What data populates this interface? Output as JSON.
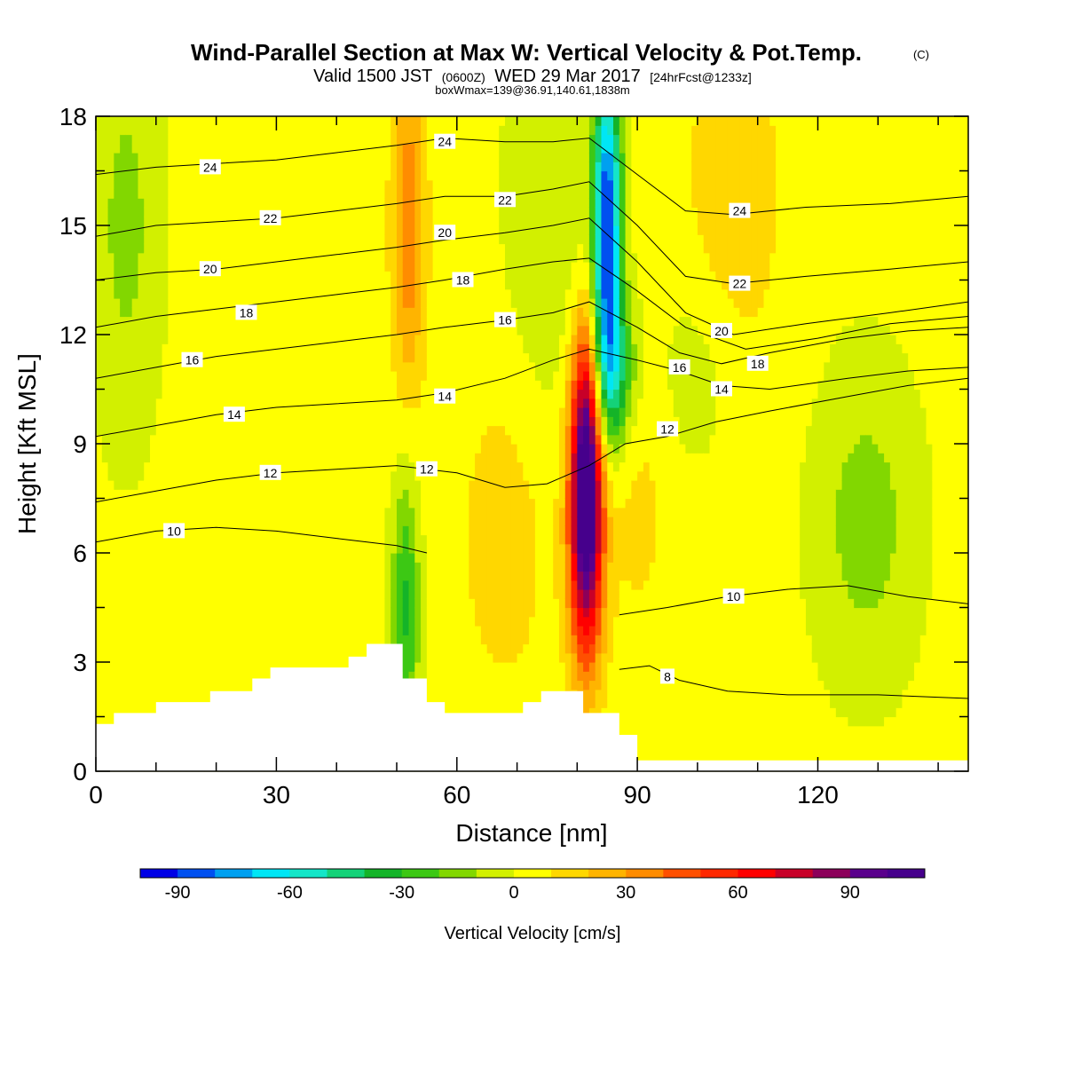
{
  "title": {
    "main": "Wind-Parallel Section at Max W: Vertical Velocity & Pot.Temp.",
    "copyright": "(C)",
    "valid_prefix": "Valid 1500 JST",
    "valid_zulu": "(0600Z)",
    "valid_date": "WED 29 Mar 2017",
    "forecast": "[24hrFcst@1233z]",
    "box_info": "boxWmax=139@36.91,140.61,1838m"
  },
  "chart_data": {
    "type": "heatmap",
    "xlabel": "Distance [nm]",
    "ylabel": "Height [Kft MSL]",
    "xlim": [
      0,
      145
    ],
    "ylim": [
      0,
      18
    ],
    "x_ticks": [
      0,
      30,
      60,
      90,
      120
    ],
    "x_tick_labels": [
      "0",
      "30",
      "60",
      "90",
      "120"
    ],
    "y_ticks": [
      0,
      3,
      6,
      9,
      12,
      15,
      18
    ],
    "y_tick_labels": [
      "0",
      "3",
      "6",
      "9",
      "12",
      "15",
      "18"
    ],
    "colorbar": {
      "title": "Vertical Velocity [cm/s]",
      "bounds": [
        -100,
        110
      ],
      "step": 10,
      "tick_values": [
        -90,
        -60,
        -30,
        0,
        30,
        60,
        90
      ],
      "tick_labels": [
        "-90",
        "-60",
        "-30",
        "0",
        "30",
        "60",
        "90"
      ],
      "colors": [
        "#0000e6",
        "#0050f0",
        "#00a0f0",
        "#00e6f5",
        "#14e6c8",
        "#14d278",
        "#14b428",
        "#3cc814",
        "#82d700",
        "#d2f000",
        "#ffff00",
        "#ffd700",
        "#ffb400",
        "#ff8c00",
        "#ff5000",
        "#ff2800",
        "#ff0000",
        "#c80028",
        "#8c005a",
        "#5a008c",
        "#46008c"
      ]
    },
    "terrain_profile": [
      [
        0,
        1.3
      ],
      [
        3,
        1.3
      ],
      [
        3,
        1.6
      ],
      [
        10,
        1.6
      ],
      [
        10,
        1.9
      ],
      [
        19,
        1.9
      ],
      [
        19,
        2.2
      ],
      [
        26,
        2.2
      ],
      [
        26,
        2.55
      ],
      [
        29,
        2.55
      ],
      [
        29,
        2.85
      ],
      [
        42,
        2.85
      ],
      [
        42,
        3.15
      ],
      [
        45,
        3.15
      ],
      [
        45,
        3.5
      ],
      [
        51,
        3.5
      ],
      [
        51,
        2.55
      ],
      [
        55,
        2.55
      ],
      [
        55,
        1.9
      ],
      [
        58,
        1.9
      ],
      [
        58,
        1.6
      ],
      [
        71,
        1.6
      ],
      [
        71,
        1.9
      ],
      [
        74,
        1.9
      ],
      [
        74,
        2.2
      ],
      [
        81,
        2.2
      ],
      [
        81,
        1.6
      ],
      [
        87,
        1.6
      ],
      [
        87,
        1.0
      ],
      [
        90,
        1.0
      ],
      [
        90,
        0.3
      ],
      [
        145,
        0.3
      ]
    ],
    "velocity_features": [
      {
        "x": 81.5,
        "y": 7.0,
        "sx": 2.0,
        "sy": 2.8,
        "value": 110
      },
      {
        "x": 81.5,
        "y": 10.2,
        "sx": 1.6,
        "sy": 2.0,
        "value": 35
      },
      {
        "x": 52,
        "y": 15.0,
        "sx": 2.0,
        "sy": 3.2,
        "value": 35
      },
      {
        "x": 68,
        "y": 6.5,
        "sx": 6.0,
        "sy": 3.5,
        "value": 12
      },
      {
        "x": 106,
        "y": 16.0,
        "sx": 6.0,
        "sy": 4.0,
        "value": 14
      },
      {
        "x": 90,
        "y": 7.5,
        "sx": 4.0,
        "sy": 3.0,
        "value": 10
      },
      {
        "x": 85,
        "y": 15.0,
        "sx": 1.6,
        "sy": 3.0,
        "value": -95
      },
      {
        "x": 86,
        "y": 11.0,
        "sx": 2.5,
        "sy": 1.5,
        "value": -45
      },
      {
        "x": 51.5,
        "y": 4.5,
        "sx": 1.6,
        "sy": 2.5,
        "value": -35
      },
      {
        "x": 128,
        "y": 6.8,
        "sx": 6.0,
        "sy": 3.0,
        "value": -18
      },
      {
        "x": 5,
        "y": 15.0,
        "sx": 4.0,
        "sy": 4.0,
        "value": -16
      },
      {
        "x": 75,
        "y": 15.0,
        "sx": 5.0,
        "sy": 4.0,
        "value": -12
      },
      {
        "x": 100,
        "y": 11.0,
        "sx": 5.0,
        "sy": 2.0,
        "value": -10
      }
    ],
    "velocity_background": 3,
    "isentropes": [
      {
        "value": 8,
        "label": "8",
        "label_at": [
          95,
          2.6
        ],
        "points": [
          [
            87,
            2.8
          ],
          [
            92,
            2.9
          ],
          [
            97,
            2.5
          ],
          [
            105,
            2.2
          ],
          [
            115,
            2.1
          ],
          [
            130,
            2.1
          ],
          [
            145,
            2.0
          ]
        ]
      },
      {
        "value": 10,
        "label": "10",
        "label_at": [
          13,
          6.6
        ],
        "points": [
          [
            0,
            6.3
          ],
          [
            10,
            6.6
          ],
          [
            20,
            6.7
          ],
          [
            30,
            6.6
          ],
          [
            40,
            6.4
          ],
          [
            50,
            6.2
          ],
          [
            55,
            6.0
          ]
        ]
      },
      {
        "value": 10,
        "label": "10",
        "label_at": [
          106,
          4.8
        ],
        "points": [
          [
            87,
            4.3
          ],
          [
            95,
            4.5
          ],
          [
            105,
            4.8
          ],
          [
            115,
            5.0
          ],
          [
            125,
            5.1
          ],
          [
            135,
            4.8
          ],
          [
            145,
            4.6
          ]
        ]
      },
      {
        "value": 12,
        "label": "12",
        "label_at": [
          29,
          8.2
        ],
        "points": [
          [
            0,
            7.4
          ],
          [
            10,
            7.7
          ],
          [
            20,
            8.0
          ],
          [
            30,
            8.2
          ],
          [
            40,
            8.3
          ],
          [
            50,
            8.4
          ],
          [
            60,
            8.2
          ],
          [
            68,
            7.8
          ],
          [
            75,
            7.9
          ],
          [
            82,
            8.4
          ],
          [
            88,
            9.0
          ],
          [
            95,
            9.2
          ],
          [
            103,
            9.6
          ],
          [
            112,
            9.9
          ],
          [
            125,
            10.3
          ],
          [
            135,
            10.6
          ],
          [
            145,
            10.8
          ]
        ]
      },
      {
        "value": 14,
        "label": "14",
        "label_at": [
          23,
          9.8
        ],
        "points": [
          [
            0,
            9.2
          ],
          [
            10,
            9.5
          ],
          [
            20,
            9.8
          ],
          [
            30,
            10.0
          ],
          [
            40,
            10.1
          ],
          [
            50,
            10.2
          ],
          [
            58,
            10.4
          ],
          [
            68,
            10.8
          ],
          [
            76,
            11.3
          ],
          [
            82,
            11.6
          ],
          [
            90,
            11.3
          ],
          [
            97,
            11.0
          ],
          [
            104,
            10.6
          ],
          [
            112,
            10.5
          ],
          [
            125,
            10.8
          ],
          [
            135,
            11.0
          ],
          [
            145,
            11.1
          ]
        ]
      },
      {
        "value": 16,
        "label": "16",
        "label_at": [
          16,
          11.3
        ],
        "points": [
          [
            0,
            10.8
          ],
          [
            10,
            11.1
          ],
          [
            20,
            11.4
          ],
          [
            30,
            11.6
          ],
          [
            40,
            11.8
          ],
          [
            50,
            12.0
          ],
          [
            58,
            12.2
          ],
          [
            68,
            12.4
          ],
          [
            76,
            12.6
          ],
          [
            82,
            12.9
          ],
          [
            90,
            12.2
          ],
          [
            97,
            11.5
          ],
          [
            104,
            11.2
          ],
          [
            112,
            11.5
          ],
          [
            125,
            11.9
          ],
          [
            135,
            12.1
          ],
          [
            145,
            12.2
          ]
        ]
      },
      {
        "value": 18,
        "label": "18",
        "label_at": [
          25,
          12.6
        ],
        "points": [
          [
            0,
            12.2
          ],
          [
            10,
            12.5
          ],
          [
            20,
            12.7
          ],
          [
            30,
            12.9
          ],
          [
            40,
            13.1
          ],
          [
            50,
            13.3
          ],
          [
            58,
            13.5
          ],
          [
            68,
            13.8
          ],
          [
            76,
            14.0
          ],
          [
            82,
            14.1
          ],
          [
            90,
            13.2
          ],
          [
            98,
            12.2
          ],
          [
            108,
            11.6
          ],
          [
            120,
            11.9
          ],
          [
            132,
            12.3
          ],
          [
            145,
            12.5
          ]
        ]
      },
      {
        "value": 20,
        "label": "20",
        "label_at": [
          19,
          13.8
        ],
        "points": [
          [
            0,
            13.5
          ],
          [
            10,
            13.7
          ],
          [
            20,
            13.8
          ],
          [
            30,
            14.0
          ],
          [
            40,
            14.2
          ],
          [
            50,
            14.4
          ],
          [
            58,
            14.6
          ],
          [
            68,
            14.8
          ],
          [
            76,
            15.0
          ],
          [
            82,
            15.2
          ],
          [
            90,
            14.0
          ],
          [
            98,
            12.6
          ],
          [
            106,
            12.0
          ],
          [
            118,
            12.3
          ],
          [
            132,
            12.6
          ],
          [
            145,
            12.9
          ]
        ]
      },
      {
        "value": 22,
        "label": "22",
        "label_at": [
          29,
          15.2
        ],
        "points": [
          [
            0,
            14.7
          ],
          [
            10,
            15.0
          ],
          [
            20,
            15.1
          ],
          [
            30,
            15.2
          ],
          [
            40,
            15.4
          ],
          [
            50,
            15.6
          ],
          [
            58,
            15.8
          ],
          [
            68,
            15.8
          ],
          [
            76,
            16.0
          ],
          [
            82,
            16.2
          ],
          [
            90,
            15.0
          ],
          [
            98,
            13.6
          ],
          [
            106,
            13.4
          ],
          [
            118,
            13.6
          ],
          [
            132,
            13.8
          ],
          [
            145,
            14.0
          ]
        ]
      },
      {
        "value": 24,
        "label": "24",
        "label_at": [
          19,
          16.6
        ],
        "points": [
          [
            0,
            16.4
          ],
          [
            10,
            16.6
          ],
          [
            20,
            16.7
          ],
          [
            30,
            16.8
          ],
          [
            40,
            17.0
          ],
          [
            50,
            17.2
          ],
          [
            58,
            17.4
          ],
          [
            68,
            17.3
          ],
          [
            76,
            17.3
          ],
          [
            82,
            17.4
          ],
          [
            90,
            16.4
          ],
          [
            98,
            15.4
          ],
          [
            106,
            15.3
          ],
          [
            118,
            15.5
          ],
          [
            132,
            15.6
          ],
          [
            145,
            15.8
          ]
        ]
      }
    ],
    "extra_isentrope_labels": [
      {
        "label": "24",
        "at": [
          58,
          17.3
        ]
      },
      {
        "label": "22",
        "at": [
          68,
          15.7
        ]
      },
      {
        "label": "20",
        "at": [
          58,
          14.8
        ]
      },
      {
        "label": "18",
        "at": [
          61,
          13.5
        ]
      },
      {
        "label": "16",
        "at": [
          68,
          12.4
        ]
      },
      {
        "label": "14",
        "at": [
          58,
          10.3
        ]
      },
      {
        "label": "12",
        "at": [
          55,
          8.3
        ]
      },
      {
        "label": "24",
        "at": [
          107,
          15.4
        ]
      },
      {
        "label": "22",
        "at": [
          107,
          13.4
        ]
      },
      {
        "label": "20",
        "at": [
          104,
          12.1
        ]
      },
      {
        "label": "18",
        "at": [
          110,
          11.2
        ]
      },
      {
        "label": "16",
        "at": [
          97,
          11.1
        ]
      },
      {
        "label": "14",
        "at": [
          104,
          10.5
        ]
      },
      {
        "label": "12",
        "at": [
          95,
          9.4
        ]
      }
    ],
    "legend": "none"
  }
}
